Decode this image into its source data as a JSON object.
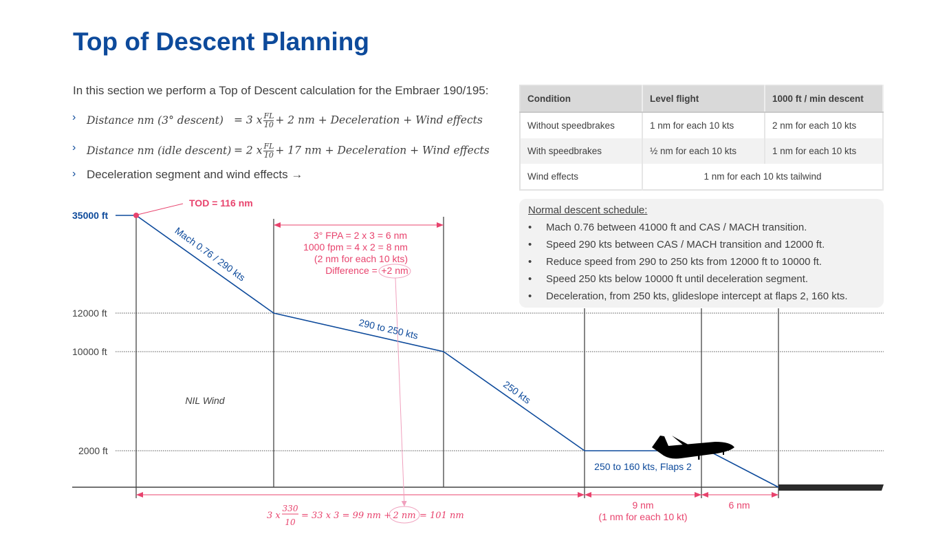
{
  "title": "Top of Descent Planning",
  "intro": "In this section we perform a Top of Descent calculation for the Embraer 190/195:",
  "bullets": {
    "f1_left": "Distance nm (3° descent)",
    "f1_mid": "= 3 x",
    "f1_right": "+   2 nm + Deceleration + Wind effects",
    "f2_left": "Distance nm (idle descent)",
    "f2_mid": "= 2 x",
    "f2_right": "+ 17 nm + Deceleration + Wind effects",
    "frac_num": "FL",
    "frac_den": "10",
    "item3": "Deceleration segment and wind effects →",
    "marker": "›"
  },
  "table": {
    "headers": [
      "Condition",
      "Level flight",
      "1000 ft / min descent"
    ],
    "rows": [
      [
        "Without speedbrakes",
        "1 nm for each 10 kts",
        "2 nm for each 10 kts"
      ],
      [
        "With speedbrakes",
        "½ nm for each 10 kts",
        "1 nm for each 10 kts"
      ],
      [
        "Wind effects",
        "1 nm for each 10 kts tailwind"
      ]
    ]
  },
  "schedule": {
    "title": "Normal descent schedule:",
    "bullet": "•",
    "items": [
      "Mach 0.76 between 41000 ft and CAS / MACH transition.",
      "Speed 290 kts between CAS / MACH transition and 12000 ft.",
      "Reduce speed from 290 to 250 kts from 12000 ft to 10000 ft.",
      "Speed 250 kts below 10000 ft until deceleration segment.",
      "Deceleration, from 250 kts, glideslope intercept at flaps 2, 160 kts."
    ]
  },
  "diagram": {
    "altitudes": [
      "35000 ft",
      "12000 ft",
      "10000 ft",
      "2000 ft"
    ],
    "tod": "TOD = 116 nm",
    "seg1": "Mach 0.76 / 290 kts",
    "seg2": "290 to 250 kts",
    "seg3": "250 kts",
    "seg4": "250 to 160 kts, Flaps 2",
    "nil_wind": "NIL Wind",
    "note": [
      "3° FPA = 2 x 3 = 6 nm",
      "1000 fpm = 4 x 2 = 8 nm",
      "(2 nm for each 10 kts)",
      "Difference = ",
      "+2 nm"
    ],
    "bottom_formula": {
      "a": "3 x",
      "num": "330",
      "den": "10",
      "b": "= 33 x 3 =  99 nm +",
      "c": "2 nm",
      "d": "= 101 nm"
    },
    "decel": "9 nm",
    "decel_note": "(1 nm for each 10 kt)",
    "final": "6 nm",
    "colors": {
      "blue": "#0d4a9b",
      "red": "#e8436d",
      "pink": "#f0a0bd"
    }
  }
}
